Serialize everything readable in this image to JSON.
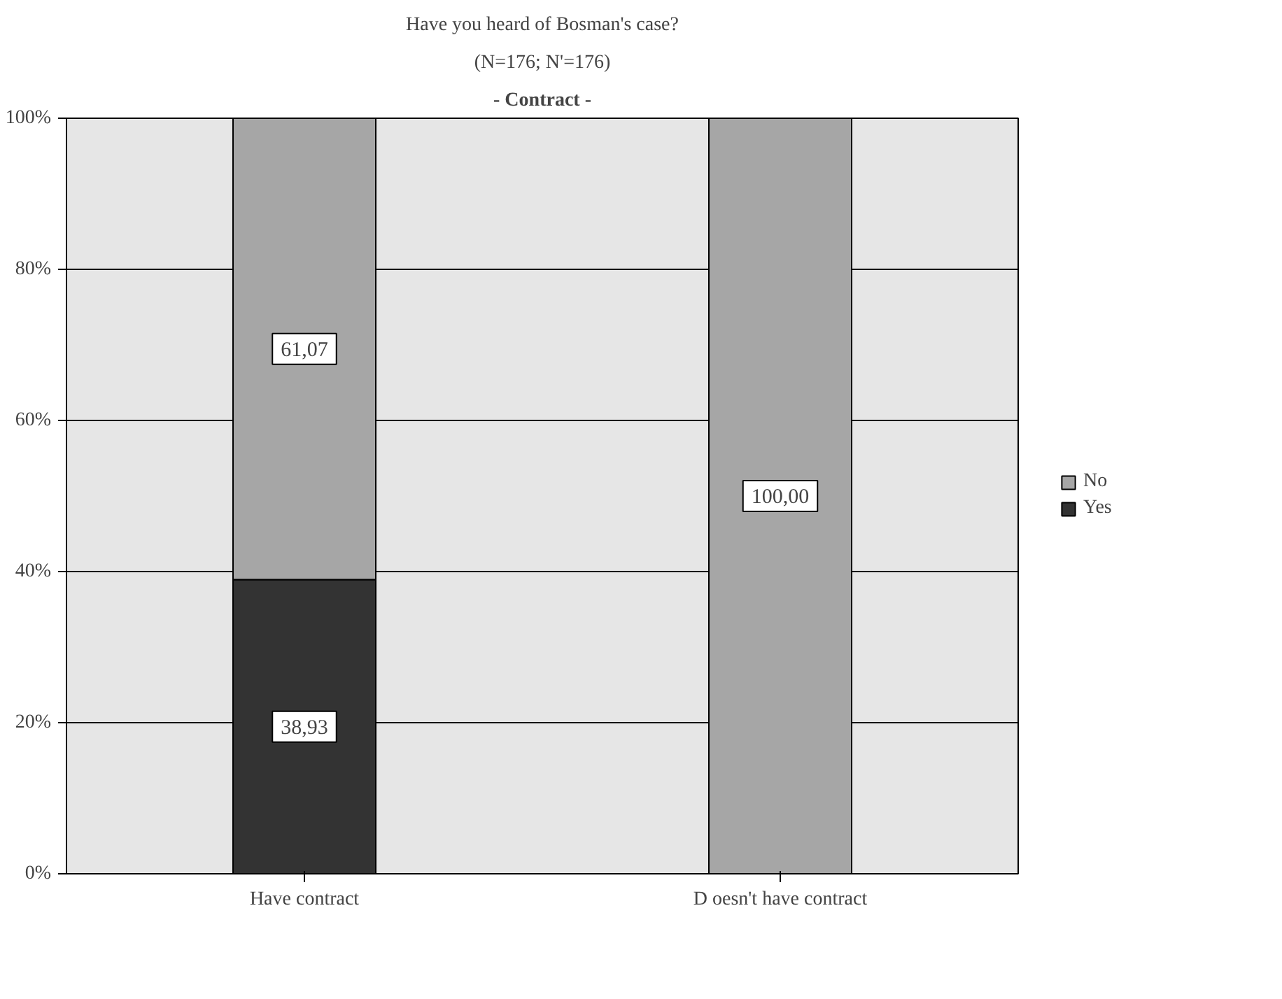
{
  "chart_data": {
    "type": "bar",
    "title": "Have you heard of Bosman's case?",
    "subtitle": "(N=176; N'=176)",
    "annotations": [
      "- Contract -"
    ],
    "categories": [
      "Have contract",
      "D oesn't have contract"
    ],
    "stacked": true,
    "series": [
      {
        "name": "Yes",
        "color": "#333333",
        "values": [
          38.93,
          0
        ],
        "value_labels": [
          "38,93",
          null
        ]
      },
      {
        "name": "No",
        "color": "#a6a6a6",
        "values": [
          61.07,
          100
        ],
        "value_labels": [
          "61,07",
          "100,00"
        ]
      }
    ],
    "ylim": [
      0,
      100
    ],
    "yticks": [
      {
        "value": 0,
        "label": "0%"
      },
      {
        "value": 20,
        "label": "20%"
      },
      {
        "value": 40,
        "label": "40%"
      },
      {
        "value": 60,
        "label": "60%"
      },
      {
        "value": 80,
        "label": "80%"
      },
      {
        "value": 100,
        "label": "100%"
      }
    ],
    "grid": "y",
    "legend": "right"
  }
}
